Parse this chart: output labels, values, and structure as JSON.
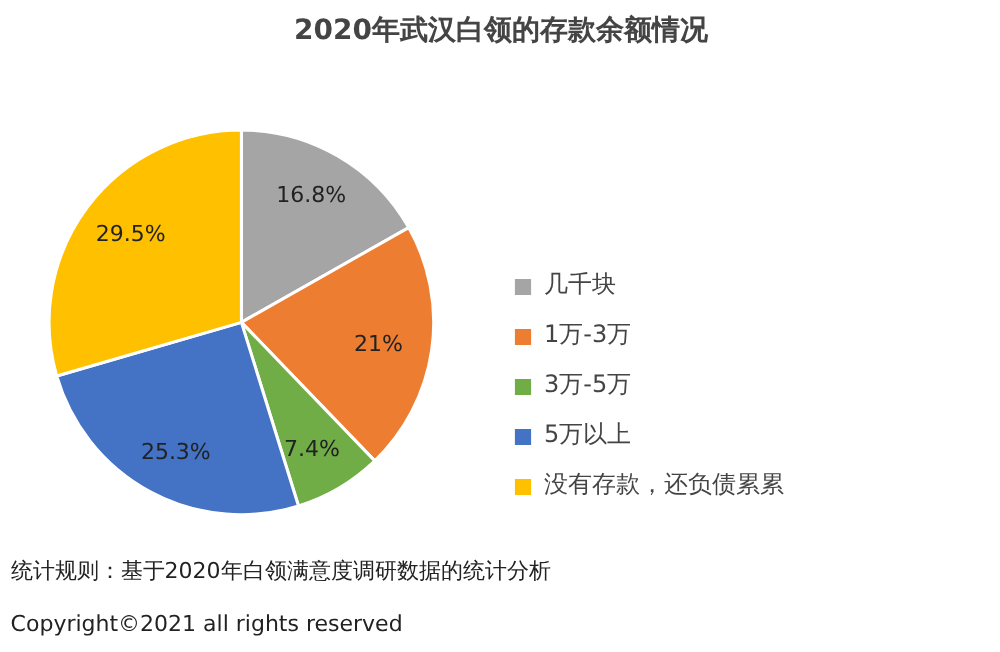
{
  "chart_data": {
    "type": "pie",
    "title": "2020年武汉白领的存款余额情况",
    "categories": [
      "几千块",
      "1万-3万",
      "3万-5万",
      "5万以上",
      "没有存款，还负债累累"
    ],
    "values": [
      16.8,
      21,
      7.4,
      25.3,
      29.5
    ],
    "colors": [
      "#a5a5a5",
      "#ed7d31",
      "#70ad47",
      "#4472c4",
      "#ffc000"
    ],
    "value_labels": [
      "16.8%",
      "21%",
      "7.4%",
      "25.3%",
      "29.5%"
    ],
    "legend": "right",
    "annotations": [
      "统计规则：基于2020年白领满意度调研数据的统计分析",
      "Copyright©2021 all rights reserved"
    ]
  }
}
